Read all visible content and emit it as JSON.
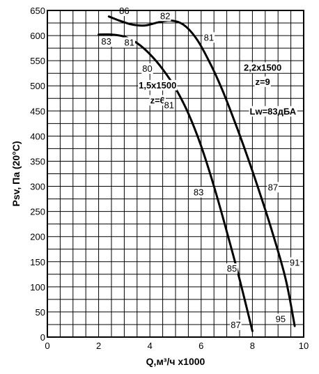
{
  "chart_data": {
    "type": "line",
    "xlabel": "Q,м³/ч x1000",
    "ylabel": "Psv, Па (20°C)",
    "xlim": [
      0,
      10
    ],
    "ylim": [
      0,
      650
    ],
    "x_ticks": [
      "0",
      "2",
      "4",
      "6",
      "8",
      "10"
    ],
    "y_ticks": [
      "0",
      "50",
      "100",
      "150",
      "200",
      "250",
      "300",
      "350",
      "400",
      "450",
      "500",
      "550",
      "600",
      "650"
    ],
    "grid": true,
    "series": [
      {
        "name": "1,5x1500 z=6",
        "points": [
          [
            2.0,
            602
          ],
          [
            2.5,
            602
          ],
          [
            3.0,
            598
          ],
          [
            3.5,
            585
          ],
          [
            4.0,
            563
          ],
          [
            4.5,
            533
          ],
          [
            5.0,
            495
          ],
          [
            5.5,
            445
          ],
          [
            6.0,
            380
          ],
          [
            6.5,
            300
          ],
          [
            7.0,
            210
          ],
          [
            7.5,
            115
          ],
          [
            8.0,
            12
          ]
        ]
      },
      {
        "name": "2,2x1500 z=9",
        "points": [
          [
            2.4,
            638
          ],
          [
            2.8,
            630
          ],
          [
            3.3,
            622
          ],
          [
            3.8,
            620
          ],
          [
            4.3,
            626
          ],
          [
            4.8,
            630
          ],
          [
            5.3,
            622
          ],
          [
            5.8,
            595
          ],
          [
            6.3,
            550
          ],
          [
            6.8,
            495
          ],
          [
            7.3,
            430
          ],
          [
            7.8,
            360
          ],
          [
            8.3,
            285
          ],
          [
            8.8,
            205
          ],
          [
            9.3,
            115
          ],
          [
            9.65,
            22
          ]
        ]
      }
    ],
    "curve_labels": [
      {
        "text": "1,5x1500",
        "x": 4.3,
        "y": 495
      },
      {
        "text": "z=6",
        "x": 4.3,
        "y": 465
      },
      {
        "text": "2,2x1500",
        "x": 8.4,
        "y": 530
      },
      {
        "text": "z=9",
        "x": 8.4,
        "y": 502
      },
      {
        "text": "Lw=83дБА",
        "x": 8.8,
        "y": 443
      }
    ],
    "annotations": [
      {
        "text": "86",
        "x": 3.0,
        "y": 643
      },
      {
        "text": "82",
        "x": 4.6,
        "y": 633
      },
      {
        "text": "83",
        "x": 2.3,
        "y": 582
      },
      {
        "text": "81",
        "x": 3.2,
        "y": 580
      },
      {
        "text": "80",
        "x": 3.9,
        "y": 528
      },
      {
        "text": "81",
        "x": 4.75,
        "y": 455
      },
      {
        "text": "81",
        "x": 6.3,
        "y": 590
      },
      {
        "text": "83",
        "x": 5.9,
        "y": 282
      },
      {
        "text": "87",
        "x": 8.8,
        "y": 292
      },
      {
        "text": "85",
        "x": 7.2,
        "y": 130
      },
      {
        "text": "91",
        "x": 9.65,
        "y": 142
      },
      {
        "text": "87",
        "x": 7.35,
        "y": 18
      },
      {
        "text": "95",
        "x": 9.1,
        "y": 30
      }
    ]
  }
}
